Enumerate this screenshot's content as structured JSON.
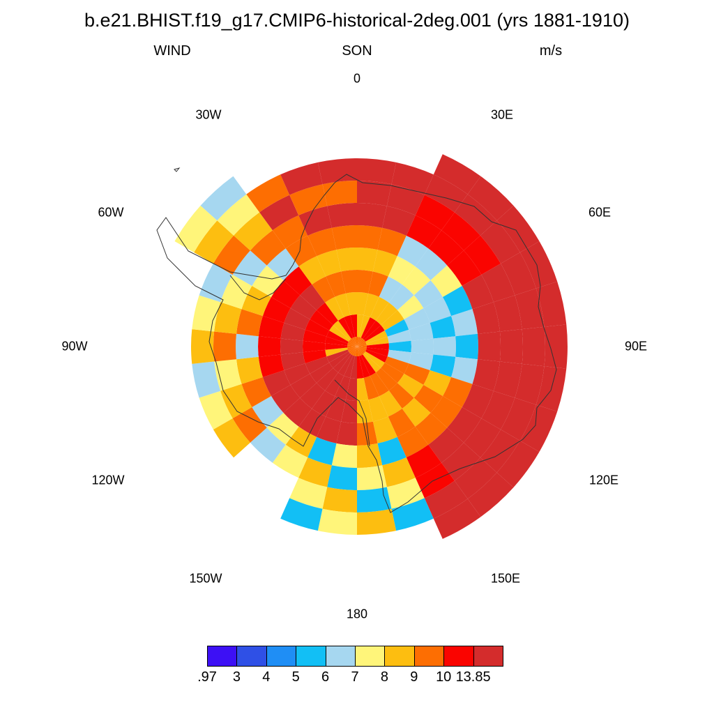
{
  "title": "b.e21.BHIST.f19_g17.CMIP6-historical-2deg.001 (yrs 1881-1910)",
  "left_label": "WIND",
  "center_label": "SON",
  "right_label": "m/s",
  "longitude_labels": [
    "0",
    "30E",
    "60E",
    "90E",
    "120E",
    "150E",
    "180",
    "150W",
    "120W",
    "90W",
    "60W",
    "30W"
  ],
  "colorbar": {
    "colors": [
      "#3d10f5",
      "#2f50e6",
      "#1f8ef5",
      "#12bff5",
      "#a6d7f0",
      "#fff57a",
      "#fdbe10",
      "#fd6e02",
      "#fa0400",
      "#d42c2c"
    ],
    "labels": [
      ".97",
      "3",
      "4",
      "5",
      "6",
      "7",
      "8",
      "9",
      "10",
      "13.85"
    ]
  },
  "map": {
    "projection": "south polar stereographic",
    "variable": "WIND",
    "season": "SON",
    "units": "m/s"
  }
}
